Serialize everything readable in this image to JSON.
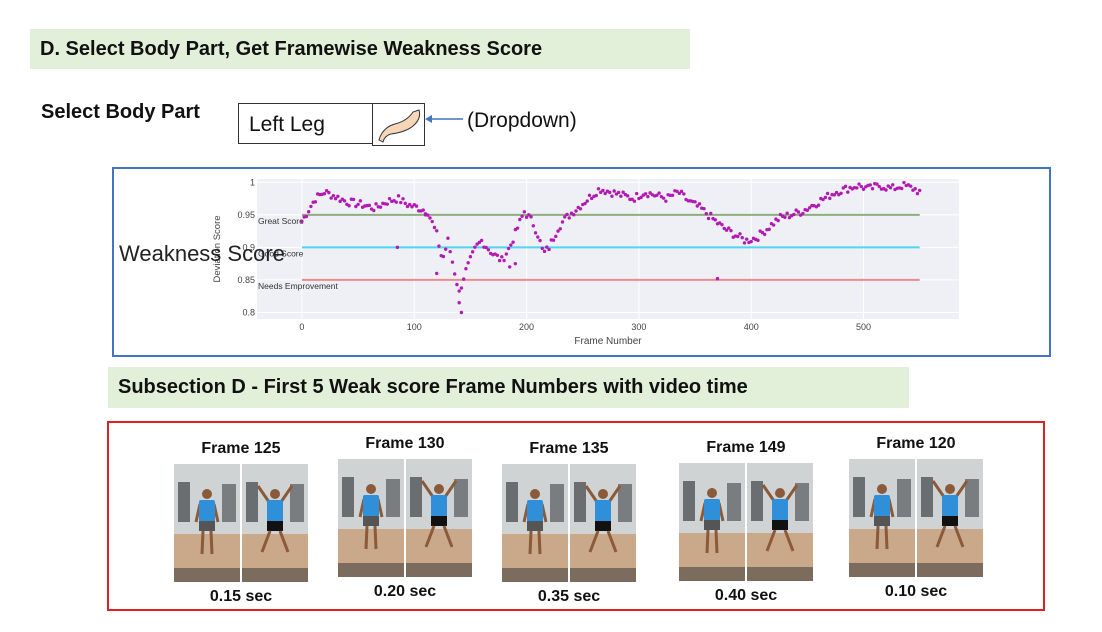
{
  "section_d": {
    "title": "D. Select Body Part, Get Framewise Weakness Score"
  },
  "select": {
    "label": "Select Body Part",
    "value": "Left Leg",
    "icon": "leg-icon",
    "annotation": "(Dropdown)"
  },
  "chart_label": "Weakness Score",
  "chart_data": {
    "type": "scatter",
    "title": "",
    "xlabel": "Frame Number",
    "ylabel": "Deviation Score",
    "xlim": [
      -40,
      585
    ],
    "ylim": [
      0.79,
      1.005
    ],
    "xticks": [
      "0",
      "100",
      "200",
      "300",
      "400",
      "500"
    ],
    "xtick_values": [
      0,
      100,
      200,
      300,
      400,
      500
    ],
    "yticks": [
      "0.8",
      "0.85",
      "0.9",
      "0.95",
      "1"
    ],
    "ytick_values": [
      0.8,
      0.85,
      0.9,
      0.95,
      1.0
    ],
    "grid": true,
    "series_color": "#b319b3",
    "reference_lines": [
      {
        "y": 0.95,
        "label": "Great Score",
        "color": "#8fae7e"
      },
      {
        "y": 0.9,
        "label": "Good Score",
        "color": "#4fd6f0"
      },
      {
        "y": 0.85,
        "label": "Needs Emprovement",
        "color": "#f08a8a"
      }
    ],
    "keypoints": [
      [
        0,
        0.94
      ],
      [
        5,
        0.955
      ],
      [
        12,
        0.975
      ],
      [
        20,
        0.985
      ],
      [
        30,
        0.978
      ],
      [
        40,
        0.97
      ],
      [
        55,
        0.965
      ],
      [
        65,
        0.96
      ],
      [
        75,
        0.97
      ],
      [
        85,
        0.975
      ],
      [
        95,
        0.965
      ],
      [
        105,
        0.96
      ],
      [
        112,
        0.955
      ],
      [
        120,
        0.92
      ],
      [
        125,
        0.88
      ],
      [
        130,
        0.91
      ],
      [
        135,
        0.87
      ],
      [
        140,
        0.83
      ],
      [
        145,
        0.86
      ],
      [
        150,
        0.88
      ],
      [
        155,
        0.9
      ],
      [
        160,
        0.91
      ],
      [
        165,
        0.9
      ],
      [
        170,
        0.89
      ],
      [
        178,
        0.88
      ],
      [
        185,
        0.9
      ],
      [
        192,
        0.93
      ],
      [
        198,
        0.955
      ],
      [
        205,
        0.94
      ],
      [
        210,
        0.92
      ],
      [
        215,
        0.89
      ],
      [
        220,
        0.9
      ],
      [
        228,
        0.93
      ],
      [
        235,
        0.945
      ],
      [
        245,
        0.96
      ],
      [
        255,
        0.975
      ],
      [
        265,
        0.99
      ],
      [
        275,
        0.985
      ],
      [
        285,
        0.98
      ],
      [
        295,
        0.975
      ],
      [
        305,
        0.985
      ],
      [
        315,
        0.98
      ],
      [
        325,
        0.975
      ],
      [
        335,
        0.985
      ],
      [
        345,
        0.97
      ],
      [
        355,
        0.96
      ],
      [
        365,
        0.945
      ],
      [
        375,
        0.93
      ],
      [
        385,
        0.92
      ],
      [
        395,
        0.91
      ],
      [
        405,
        0.915
      ],
      [
        415,
        0.93
      ],
      [
        425,
        0.945
      ],
      [
        435,
        0.95
      ],
      [
        445,
        0.955
      ],
      [
        455,
        0.965
      ],
      [
        465,
        0.975
      ],
      [
        475,
        0.985
      ],
      [
        485,
        0.99
      ],
      [
        495,
        0.995
      ],
      [
        505,
        0.99
      ],
      [
        515,
        0.995
      ],
      [
        525,
        0.99
      ],
      [
        535,
        0.995
      ],
      [
        545,
        0.99
      ],
      [
        550,
        0.985
      ]
    ],
    "outliers": [
      [
        85,
        0.9
      ],
      [
        110,
        0.95
      ],
      [
        120,
        0.86
      ],
      [
        140,
        0.815
      ],
      [
        142,
        0.8
      ],
      [
        185,
        0.87
      ],
      [
        190,
        0.875
      ],
      [
        370,
        0.852
      ]
    ]
  },
  "subsection": {
    "title": "Subsection D - First 5 Weak score Frame Numbers with video time"
  },
  "frames": [
    {
      "title": "Frame 125",
      "time": "0.15 sec"
    },
    {
      "title": "Frame 130",
      "time": "0.20 sec"
    },
    {
      "title": "Frame 135",
      "time": "0.35 sec"
    },
    {
      "title": "Frame 149",
      "time": "0.40 sec"
    },
    {
      "title": "Frame 120",
      "time": "0.10 sec"
    }
  ],
  "colors": {
    "banner_bg": "#e2efd9",
    "chart_border": "#4472c4",
    "frames_border": "#e02020",
    "shirt": "#2f8fd8",
    "shorts": "#555555"
  }
}
